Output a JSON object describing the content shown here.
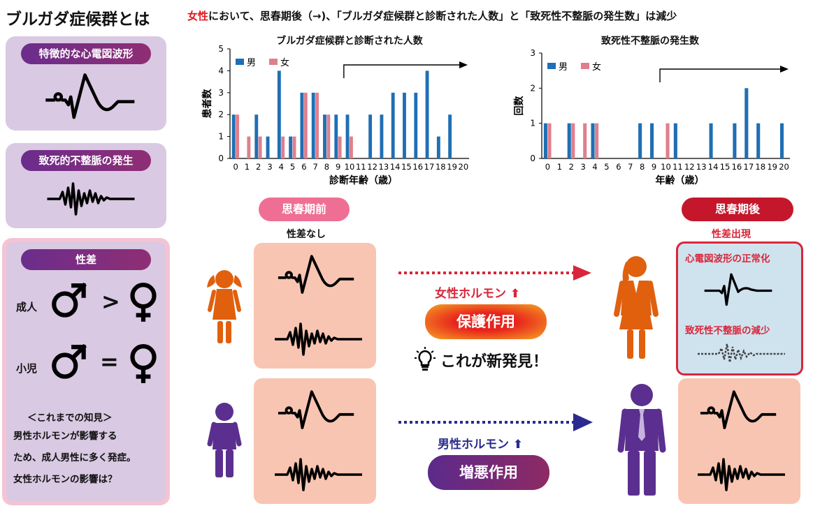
{
  "header": {
    "title": "ブルガダ症候群とは",
    "summary_highlight": "女性",
    "summary_rest": "において、思春期後（→)、「ブルガダ症候群と診断された人数」と「致死性不整脈の発生数」は減少"
  },
  "sidebar": {
    "ecg_label": "特徴的な心電図波形",
    "arrhythmia_label": "致死的不整脈の発生",
    "sex_label": "性差",
    "adult_label": "成人",
    "adult_relation": ">",
    "child_label": "小児",
    "child_relation": "=",
    "knowledge_title": "＜これまでの知見＞",
    "knowledge_lines": [
      "男性ホルモンが影響する",
      "ため、成人男性に多く発症。",
      "女性ホルモンの影響は？"
    ]
  },
  "chart_data": [
    {
      "type": "bar",
      "title": "ブルガダ症候群と診断された人数",
      "xlabel": "診断年齢（歳）",
      "ylabel": "患者数",
      "ylim": [
        0,
        5
      ],
      "yticks": [
        "0",
        "1",
        "2",
        "3",
        "4",
        "5"
      ],
      "categories": [
        "0",
        "1",
        "2",
        "3",
        "4",
        "5",
        "6",
        "7",
        "8",
        "9",
        "10",
        "11",
        "12",
        "13",
        "14",
        "15",
        "16",
        "17",
        "18",
        "19",
        "20"
      ],
      "legend_position": "top-left",
      "series": [
        {
          "name": "男",
          "color": "#1f6fb4",
          "values": [
            2,
            0,
            2,
            1,
            4,
            1,
            3,
            3,
            2,
            2,
            2,
            0,
            2,
            2,
            3,
            3,
            3,
            4,
            1,
            2,
            0
          ]
        },
        {
          "name": "女",
          "color": "#e07f8c",
          "values": [
            2,
            1,
            1,
            0,
            1,
            1,
            3,
            3,
            2,
            1,
            1,
            0,
            0,
            0,
            0,
            0,
            0,
            0,
            0,
            0,
            0
          ]
        }
      ]
    },
    {
      "type": "bar",
      "title": "致死性不整脈の発生数",
      "xlabel": "年齢（歳）",
      "ylabel": "回数",
      "ylim": [
        0,
        3
      ],
      "yticks": [
        "0",
        "1",
        "2",
        "3"
      ],
      "categories": [
        "0",
        "1",
        "2",
        "3",
        "4",
        "5",
        "6",
        "7",
        "8",
        "9",
        "10",
        "11",
        "12",
        "13",
        "14",
        "15",
        "16",
        "17",
        "18",
        "19",
        "20"
      ],
      "legend_position": "top-left",
      "series": [
        {
          "name": "男",
          "color": "#1f6fb4",
          "values": [
            1,
            0,
            1,
            0,
            1,
            0,
            0,
            0,
            1,
            1,
            0,
            1,
            0,
            0,
            1,
            0,
            1,
            2,
            1,
            0,
            1
          ]
        },
        {
          "name": "女",
          "color": "#e07f8c",
          "values": [
            1,
            0,
            1,
            1,
            1,
            0,
            0,
            0,
            0,
            0,
            1,
            0,
            0,
            0,
            0,
            0,
            0,
            0,
            0,
            0,
            0
          ]
        }
      ]
    }
  ],
  "stages": {
    "pre_label": "思春期前",
    "pre_note": "性差なし",
    "post_label": "思春期後",
    "post_note": "性差出現"
  },
  "female": {
    "hormone": "女性ホルモン",
    "action": "保護作用",
    "discovery": "これが新発見！",
    "ecg_normal": "心電図波形の正常化",
    "arrhythmia_decrease": "致死性不整脈の減少"
  },
  "male": {
    "hormone": "男性ホルモン",
    "action": "増悪作用"
  },
  "colors": {
    "male_bar": "#1f6fb4",
    "female_bar": "#e07f8c",
    "female_figure": "#e0600e",
    "male_figure": "#5b2f8f",
    "pre_pill": "#ef6f94",
    "post_pill": "#c4172b",
    "salmon_box": "#f8c5b2"
  },
  "icons": [
    "ecg-waveform-icon",
    "arrhythmia-waveform-icon",
    "male-symbol-icon",
    "female-symbol-icon",
    "girl-icon",
    "boy-icon",
    "woman-icon",
    "man-icon",
    "lightbulb-icon",
    "up-arrow-icon"
  ]
}
